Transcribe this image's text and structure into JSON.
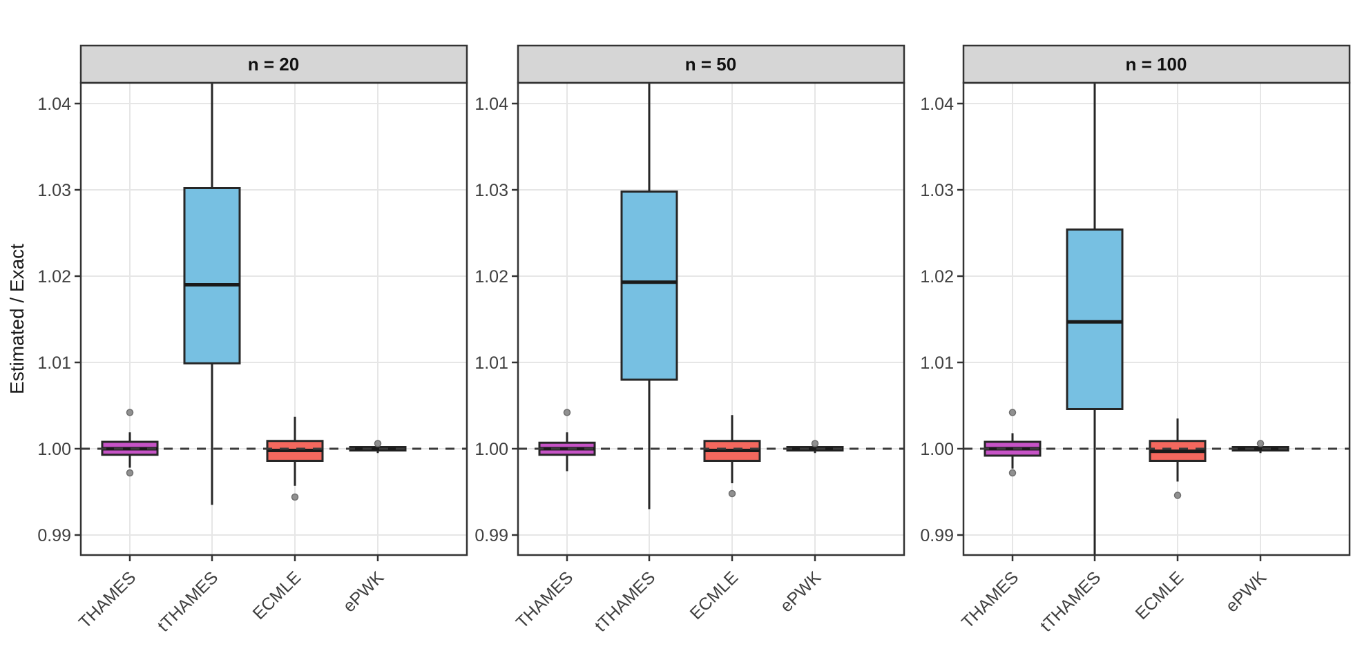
{
  "chart_data": {
    "type": "boxplot",
    "ylabel": "Estimated / Exact",
    "reference_line": 1.0,
    "y_ticks": [
      0.99,
      1.0,
      1.01,
      1.02,
      1.03,
      1.04
    ],
    "y_tick_labels": [
      "0.99",
      "1.00",
      "1.01",
      "1.02",
      "1.03",
      "1.04"
    ],
    "y_range": [
      0.9877,
      1.0424
    ],
    "categories": [
      "THAMES",
      "tTHAMES",
      "ECMLE",
      "ePWK"
    ],
    "colors": {
      "THAMES": "#C653C6",
      "tTHAMES": "#77C0E2",
      "ECMLE": "#F4685E",
      "ePWK": "#8C8C8C",
      "box_stroke": "#262626",
      "median_stroke": "#1A1A1A",
      "gridline": "#E6E6E6",
      "panel_border": "#333333",
      "strip_fill": "#D6D6D6",
      "reference_dash": "#3A3A3A",
      "outlier_fill": "#909090",
      "outlier_stroke": "#6E6E6E",
      "tick_text": "#3F3F3F"
    },
    "facets": [
      {
        "label": "n = 20",
        "boxes": [
          {
            "category": "THAMES",
            "fill": "#C653C6",
            "low": 0.9978,
            "q1": 0.9993,
            "median": 1.0,
            "q3": 1.0008,
            "high": 1.0019,
            "outliers": [
              1.0042,
              0.9972
            ],
            "clipped_high": false,
            "clipped_low": false
          },
          {
            "category": "tTHAMES",
            "fill": "#77C0E2",
            "low": 0.9935,
            "q1": 1.0099,
            "median": 1.019,
            "q3": 1.0302,
            "high": 1.045,
            "outliers": [],
            "clipped_high": true,
            "clipped_low": false
          },
          {
            "category": "ECMLE",
            "fill": "#F4685E",
            "low": 0.9957,
            "q1": 0.9986,
            "median": 0.9998,
            "q3": 1.0009,
            "high": 1.0037,
            "outliers": [
              0.9944
            ],
            "clipped_high": false,
            "clipped_low": false
          },
          {
            "category": "ePWK",
            "fill": "#8C8C8C",
            "low": 0.9995,
            "q1": 0.9998,
            "median": 1.0,
            "q3": 1.0002,
            "high": 1.0005,
            "outliers": [
              1.0006
            ],
            "clipped_high": false,
            "clipped_low": false
          }
        ]
      },
      {
        "label": "n = 50",
        "boxes": [
          {
            "category": "THAMES",
            "fill": "#C653C6",
            "low": 0.9974,
            "q1": 0.9993,
            "median": 1.0,
            "q3": 1.0007,
            "high": 1.0019,
            "outliers": [
              1.0042
            ],
            "clipped_high": false,
            "clipped_low": false
          },
          {
            "category": "tTHAMES",
            "fill": "#77C0E2",
            "low": 0.993,
            "q1": 1.008,
            "median": 1.0193,
            "q3": 1.0298,
            "high": 1.045,
            "outliers": [],
            "clipped_high": true,
            "clipped_low": false
          },
          {
            "category": "ECMLE",
            "fill": "#F4685E",
            "low": 0.996,
            "q1": 0.9986,
            "median": 0.9998,
            "q3": 1.0009,
            "high": 1.0039,
            "outliers": [
              0.9948
            ],
            "clipped_high": false,
            "clipped_low": false
          },
          {
            "category": "ePWK",
            "fill": "#8C8C8C",
            "low": 0.9995,
            "q1": 0.9998,
            "median": 1.0,
            "q3": 1.0002,
            "high": 1.0005,
            "outliers": [
              1.0006
            ],
            "clipped_high": false,
            "clipped_low": false
          }
        ]
      },
      {
        "label": "n = 100",
        "boxes": [
          {
            "category": "THAMES",
            "fill": "#C653C6",
            "low": 0.9977,
            "q1": 0.9992,
            "median": 1.0,
            "q3": 1.0008,
            "high": 1.0018,
            "outliers": [
              1.0042,
              0.9972
            ],
            "clipped_high": false,
            "clipped_low": false
          },
          {
            "category": "tTHAMES",
            "fill": "#77C0E2",
            "low": 0.982,
            "q1": 1.0046,
            "median": 1.0147,
            "q3": 1.0254,
            "high": 1.045,
            "outliers": [],
            "clipped_high": true,
            "clipped_low": true
          },
          {
            "category": "ECMLE",
            "fill": "#F4685E",
            "low": 0.9962,
            "q1": 0.9986,
            "median": 0.9997,
            "q3": 1.0009,
            "high": 1.0035,
            "outliers": [
              0.9946
            ],
            "clipped_high": false,
            "clipped_low": false
          },
          {
            "category": "ePWK",
            "fill": "#8C8C8C",
            "low": 0.9995,
            "q1": 0.9998,
            "median": 1.0,
            "q3": 1.0002,
            "high": 1.0005,
            "outliers": [
              1.0006
            ],
            "clipped_high": false,
            "clipped_low": false
          }
        ]
      }
    ]
  }
}
